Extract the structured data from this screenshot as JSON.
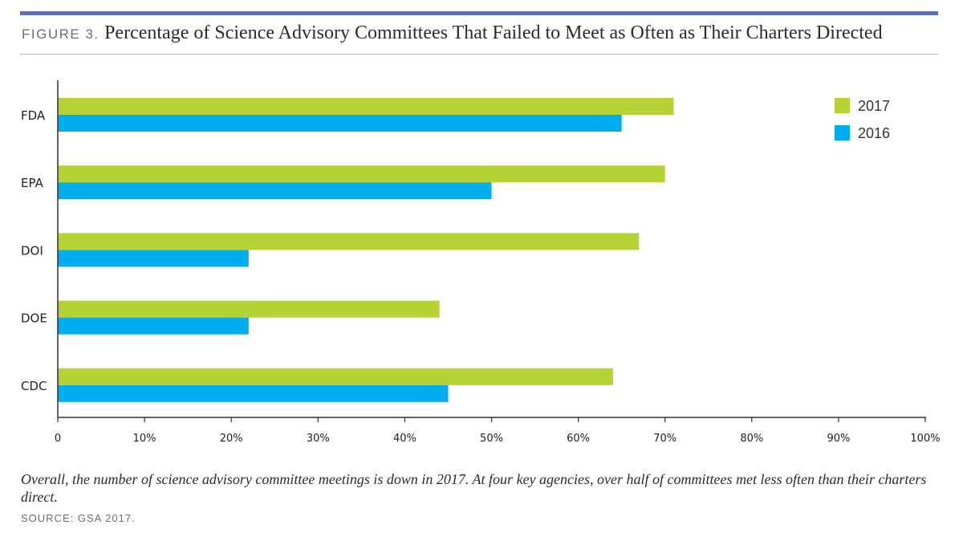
{
  "figure": {
    "label": "FIGURE 3.",
    "title": "Percentage of Science Advisory Committees That Failed to Meet as Often as Their Charters Directed"
  },
  "chart_data": {
    "type": "bar",
    "orientation": "horizontal",
    "categories": [
      "FDA",
      "EPA",
      "DOI",
      "DOE",
      "CDC"
    ],
    "series": [
      {
        "name": "2017",
        "color": "#b5d334",
        "values": [
          71,
          70,
          67,
          44,
          64
        ]
      },
      {
        "name": "2016",
        "color": "#00aeef",
        "values": [
          65,
          50,
          22,
          22,
          45
        ]
      }
    ],
    "xlim": [
      0,
      100
    ],
    "xticks": [
      "0",
      "10%",
      "20%",
      "30%",
      "40%",
      "50%",
      "60%",
      "70%",
      "80%",
      "90%",
      "100%"
    ],
    "legend_position": "top-right",
    "grid": false
  },
  "caption": "Overall, the number of science advisory committee meetings is down in 2017. At four key agencies, over half of committees met less often than their charters direct.",
  "source": "SOURCE: GSA 2017."
}
